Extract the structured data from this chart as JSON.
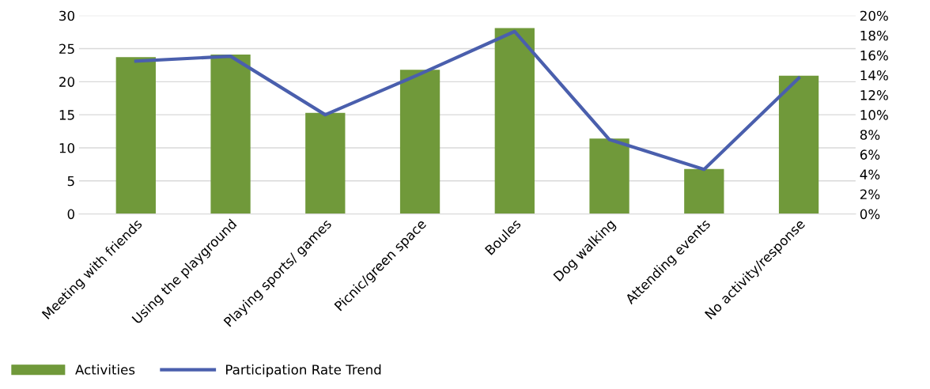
{
  "chart_data": {
    "type": "bar",
    "categories": [
      "Meeting with friends",
      "Using the playground",
      "Playing sports/ games",
      "Picnic/green space",
      "Boules",
      "Dog walking",
      "Attending events",
      "No activity/response"
    ],
    "series": [
      {
        "name": "Activities",
        "color": "#70993a",
        "values": [
          23.7,
          24.1,
          15.3,
          21.8,
          28.1,
          11.4,
          6.8,
          20.9
        ]
      },
      {
        "name": "Participation Rate Trend",
        "type": "line",
        "axis": "y2",
        "color": "#4a5fad",
        "values": [
          15.4,
          15.9,
          10.0,
          14.1,
          18.4,
          7.5,
          4.5,
          13.7
        ]
      }
    ],
    "ylim": [
      0,
      30
    ],
    "yticks": [
      0,
      5,
      10,
      15,
      20,
      25,
      30
    ],
    "y2lim": [
      0,
      20
    ],
    "y2ticks": [
      {
        "value": 0,
        "label": "0%"
      },
      {
        "value": 2,
        "label": "2%"
      },
      {
        "value": 4,
        "label": "4%"
      },
      {
        "value": 6,
        "label": "6%"
      },
      {
        "value": 8,
        "label": "8%"
      },
      {
        "value": 10,
        "label": "10%"
      },
      {
        "value": 12,
        "label": "12%"
      },
      {
        "value": 14,
        "label": "14%"
      },
      {
        "value": 16,
        "label": "16%"
      },
      {
        "value": 18,
        "label": "18%"
      },
      {
        "value": 20,
        "label": "20%"
      }
    ],
    "grid": "y",
    "legend": "bottom left",
    "marker": "none"
  }
}
